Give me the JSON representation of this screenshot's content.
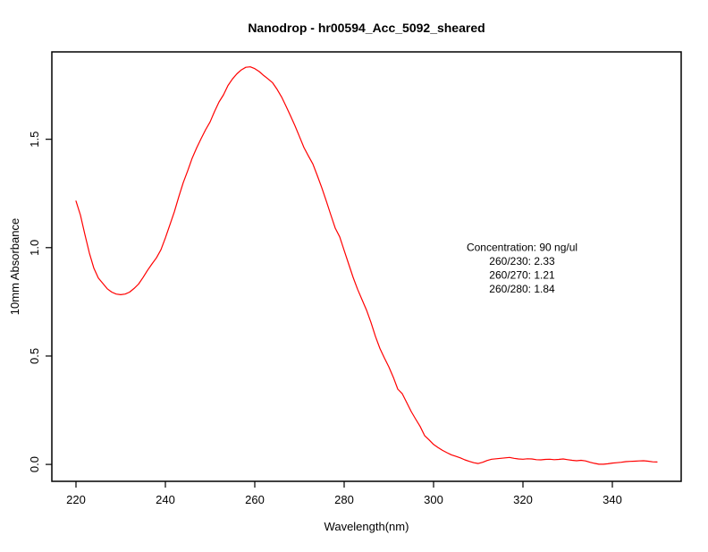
{
  "chart_data": {
    "type": "line",
    "title": "Nanodrop - hr00594_Acc_5092_sheared",
    "xlabel": "Wavelength(nm)",
    "ylabel": "10mm Absorbance",
    "x_range": [
      214.6,
      355.4
    ],
    "y_range": [
      -0.078,
      1.903
    ],
    "x_ticks": [
      {
        "label": "220",
        "value": 220
      },
      {
        "label": "240",
        "value": 240
      },
      {
        "label": "260",
        "value": 260
      },
      {
        "label": "280",
        "value": 280
      },
      {
        "label": "300",
        "value": 300
      },
      {
        "label": "320",
        "value": 320
      },
      {
        "label": "340",
        "value": 340
      }
    ],
    "y_ticks": [
      {
        "label": "0.0",
        "value": 0.0
      },
      {
        "label": "0.5",
        "value": 0.5
      },
      {
        "label": "1.0",
        "value": 1.0
      },
      {
        "label": "1.5",
        "value": 1.5
      }
    ],
    "grid": false,
    "line_color": "#ff0000",
    "series": [
      {
        "name": "absorbance-spectrum",
        "x": [
          220,
          221,
          222,
          223,
          224,
          225,
          226,
          227,
          228,
          229,
          230,
          231,
          232,
          233,
          234,
          235,
          236,
          237,
          238,
          239,
          240,
          241,
          242,
          243,
          244,
          245,
          246,
          247,
          248,
          249,
          250,
          251,
          252,
          253,
          254,
          255,
          256,
          257,
          258,
          259,
          260,
          261,
          262,
          263,
          264,
          265,
          266,
          267,
          268,
          269,
          270,
          271,
          272,
          273,
          274,
          275,
          276,
          277,
          278,
          279,
          280,
          281,
          282,
          283,
          284,
          285,
          286,
          287,
          288,
          289,
          290,
          291,
          292,
          293,
          294,
          295,
          296,
          297,
          298,
          299,
          300,
          301,
          302,
          303,
          304,
          305,
          306,
          307,
          308,
          309,
          310,
          311,
          312,
          313,
          314,
          315,
          316,
          317,
          318,
          319,
          320,
          321,
          322,
          323,
          324,
          325,
          326,
          327,
          328,
          329,
          330,
          331,
          332,
          333,
          334,
          335,
          336,
          337,
          338,
          339,
          340,
          341,
          342,
          343,
          344,
          345,
          346,
          347,
          348,
          349,
          350
        ],
        "y": [
          1.215,
          1.15,
          1.06,
          0.975,
          0.905,
          0.86,
          0.835,
          0.81,
          0.795,
          0.786,
          0.783,
          0.786,
          0.795,
          0.812,
          0.832,
          0.862,
          0.895,
          0.925,
          0.953,
          0.99,
          1.045,
          1.105,
          1.165,
          1.235,
          1.3,
          1.355,
          1.413,
          1.46,
          1.503,
          1.544,
          1.58,
          1.628,
          1.672,
          1.705,
          1.748,
          1.778,
          1.802,
          1.82,
          1.832,
          1.834,
          1.826,
          1.812,
          1.794,
          1.778,
          1.76,
          1.73,
          1.695,
          1.652,
          1.608,
          1.562,
          1.512,
          1.462,
          1.423,
          1.386,
          1.332,
          1.276,
          1.215,
          1.152,
          1.09,
          1.05,
          0.987,
          0.925,
          0.863,
          0.808,
          0.76,
          0.712,
          0.655,
          0.59,
          0.535,
          0.491,
          0.45,
          0.402,
          0.347,
          0.326,
          0.285,
          0.244,
          0.209,
          0.175,
          0.133,
          0.113,
          0.092,
          0.078,
          0.065,
          0.054,
          0.044,
          0.037,
          0.03,
          0.021,
          0.014,
          0.008,
          0.004,
          0.01,
          0.018,
          0.024,
          0.026,
          0.028,
          0.03,
          0.032,
          0.028,
          0.025,
          0.024,
          0.026,
          0.025,
          0.022,
          0.021,
          0.023,
          0.024,
          0.022,
          0.023,
          0.025,
          0.022,
          0.019,
          0.017,
          0.019,
          0.016,
          0.01,
          0.005,
          0.001,
          0.001,
          0.003,
          0.006,
          0.008,
          0.01,
          0.013,
          0.014,
          0.015,
          0.016,
          0.017,
          0.015,
          0.012,
          0.011
        ]
      }
    ],
    "annotation": {
      "lines": [
        "Concentration: 90 ng/ul",
        "260/230: 2.33",
        "260/270: 1.21",
        "260/280: 1.84"
      ]
    }
  }
}
